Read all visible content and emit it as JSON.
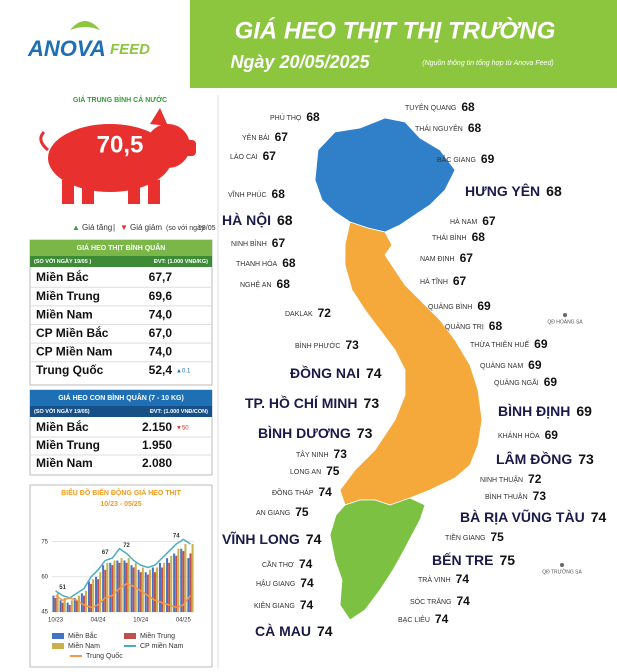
{
  "header": {
    "brand": "ANOVA",
    "brand2": "FEED",
    "title": "GIÁ HEO THỊT THỊ TRƯỜNG",
    "date": "Ngày  20/05/2025",
    "source": "(Nguồn thông tin tổng hợp từ Anova Feed)"
  },
  "national": {
    "label": "GIÁ TRUNG BÌNH CẢ NƯỚC",
    "value": "70,5",
    "legend_up": "Giá tăng",
    "legend_down": "Giá giảm",
    "compare": "(so với ngày",
    "compare_date": "19/05"
  },
  "pork_avg": {
    "title": "GIÁ HEO THỊT BÌNH QUÂN",
    "note": "(SO VỚI NGÀY 19/05 )",
    "unit": "ĐVT: (1.000 VNĐ/KG)",
    "rows": [
      [
        "Miền Bắc",
        "67,7"
      ],
      [
        "Miền Trung",
        "69,6"
      ],
      [
        "Miền Nam",
        "74,0"
      ],
      [
        "CP Miền Bắc",
        "67,0"
      ],
      [
        "CP Miền Nam",
        "74,0"
      ],
      [
        "Trung Quốc",
        "52,4",
        "▲0.1"
      ]
    ]
  },
  "piglet": {
    "title": "GIÁ HEO CON BÌNH QUÂN (7 - 10 KG)",
    "note": "(SO VỚI NGÀY 19/05)",
    "unit": "ĐVT: (1.000 VNĐ/CON)",
    "rows": [
      [
        "Miền Bắc",
        "2.150",
        "▼50"
      ],
      [
        "Miền Trung",
        "1.950"
      ],
      [
        "Miền Nam",
        "2.080"
      ]
    ]
  },
  "chart_data": {
    "type": "bar",
    "title": "BIỂU ĐỒ BIẾN ĐỘNG GIÁ HEO THỊT",
    "subtitle": "10/23 - 05/25",
    "categories": [
      "10/23",
      null,
      null,
      null,
      null,
      null,
      "04/24",
      null,
      null,
      null,
      null,
      null,
      "10/24",
      null,
      null,
      null,
      null,
      null,
      "04/25",
      null
    ],
    "ylim": [
      45,
      80
    ],
    "yticks": [
      45,
      60,
      75
    ],
    "grid": true,
    "annotations": [
      "51",
      "67",
      "72",
      "74"
    ],
    "series": [
      {
        "name": "Miền Bắc",
        "type": "bar",
        "color": "#4472c4",
        "values": [
          52,
          50,
          49,
          51,
          53,
          58,
          60,
          65,
          66,
          67,
          67,
          65,
          63,
          62,
          64,
          66,
          68,
          70,
          72,
          68
        ]
      },
      {
        "name": "Miền Trung",
        "type": "bar",
        "color": "#c0504d",
        "values": [
          51,
          49,
          48,
          50,
          52,
          57,
          59,
          63,
          65,
          66,
          66,
          64,
          62,
          61,
          62,
          64,
          66,
          69,
          71,
          70
        ]
      },
      {
        "name": "Miền Nam",
        "type": "bar",
        "color": "#c9b04a",
        "values": [
          53,
          51,
          50,
          52,
          54,
          59,
          62,
          66,
          67,
          68,
          68,
          66,
          64,
          63,
          64,
          66,
          69,
          72,
          74,
          74
        ]
      },
      {
        "name": "CP miền Nam",
        "type": "line",
        "color": "#4bacc6",
        "values": [
          54,
          52,
          51,
          53,
          55,
          60,
          63,
          67,
          68,
          72,
          70,
          67,
          65,
          64,
          65,
          68,
          71,
          74,
          76,
          74
        ]
      },
      {
        "name": "Trung Quốc",
        "type": "line",
        "color": "#f79646",
        "values": [
          52,
          50,
          51,
          50,
          48,
          47,
          48,
          51,
          52,
          55,
          57,
          56,
          54,
          52,
          50,
          49,
          48,
          47,
          48,
          52
        ]
      }
    ]
  },
  "map": {
    "islands": [
      "QĐ HOÀNG SA",
      "QĐ TRƯỜNG SA"
    ],
    "provinces": [
      {
        "name": "PHÚ THỌ",
        "price": 68
      },
      {
        "name": "TUYÊN QUANG",
        "price": 68
      },
      {
        "name": "YÊN BÁI",
        "price": 67
      },
      {
        "name": "THÁI NGUYÊN",
        "price": 68
      },
      {
        "name": "LÀO CAI",
        "price": 67
      },
      {
        "name": "BẮC GIANG",
        "price": 69
      },
      {
        "name": "VĨNH PHÚC",
        "price": 68
      },
      {
        "name": "HƯNG YÊN",
        "price": 68
      },
      {
        "name": "HÀ NỘI",
        "price": 68
      },
      {
        "name": "HÀ NAM",
        "price": 67
      },
      {
        "name": "NINH BÌNH",
        "price": 67
      },
      {
        "name": "THÁI BÌNH",
        "price": 68
      },
      {
        "name": "THANH HÓA",
        "price": 68
      },
      {
        "name": "NAM ĐỊNH",
        "price": 67
      },
      {
        "name": "NGHỆ AN",
        "price": 68
      },
      {
        "name": "HÀ TĨNH",
        "price": 67
      },
      {
        "name": "QUẢNG BÌNH",
        "price": 69
      },
      {
        "name": "DAKLAK",
        "price": 72
      },
      {
        "name": "QUẢNG TRỊ",
        "price": 68
      },
      {
        "name": "THỪA THIÊN HUẾ",
        "price": 69
      },
      {
        "name": "BÌNH PHƯỚC",
        "price": 73
      },
      {
        "name": "QUẢNG NAM",
        "price": 69
      },
      {
        "name": "ĐỒNG NAI",
        "price": 74
      },
      {
        "name": "QUẢNG NGÃI",
        "price": 69
      },
      {
        "name": "TP. HỒ CHÍ MINH",
        "price": 73
      },
      {
        "name": "BÌNH ĐỊNH",
        "price": 69
      },
      {
        "name": "BÌNH DƯƠNG",
        "price": 73
      },
      {
        "name": "KHÁNH HÒA",
        "price": 69
      },
      {
        "name": "TÂY NINH",
        "price": 73
      },
      {
        "name": "LÂM ĐỒNG",
        "price": 73
      },
      {
        "name": "LONG AN",
        "price": 75
      },
      {
        "name": "NINH THUẬN",
        "price": 72
      },
      {
        "name": "ĐỒNG THÁP",
        "price": 74
      },
      {
        "name": "BÌNH THUẬN",
        "price": 73
      },
      {
        "name": "AN GIANG",
        "price": 75
      },
      {
        "name": "BÀ RỊA VŨNG TÀU",
        "price": 74
      },
      {
        "name": "VĨNH LONG",
        "price": 74
      },
      {
        "name": "TIỀN GIANG",
        "price": 75
      },
      {
        "name": "BẾN TRE",
        "price": 75
      },
      {
        "name": "CẦN THƠ",
        "price": 74
      },
      {
        "name": "TRÀ VINH",
        "price": 74
      },
      {
        "name": "HẬU GIANG",
        "price": 74
      },
      {
        "name": "SÓC TRĂNG",
        "price": 74
      },
      {
        "name": "KIÊN GIANG",
        "price": 74
      },
      {
        "name": "BẠC LIÊU",
        "price": 74
      },
      {
        "name": "CÀ MAU",
        "price": 74
      }
    ]
  }
}
